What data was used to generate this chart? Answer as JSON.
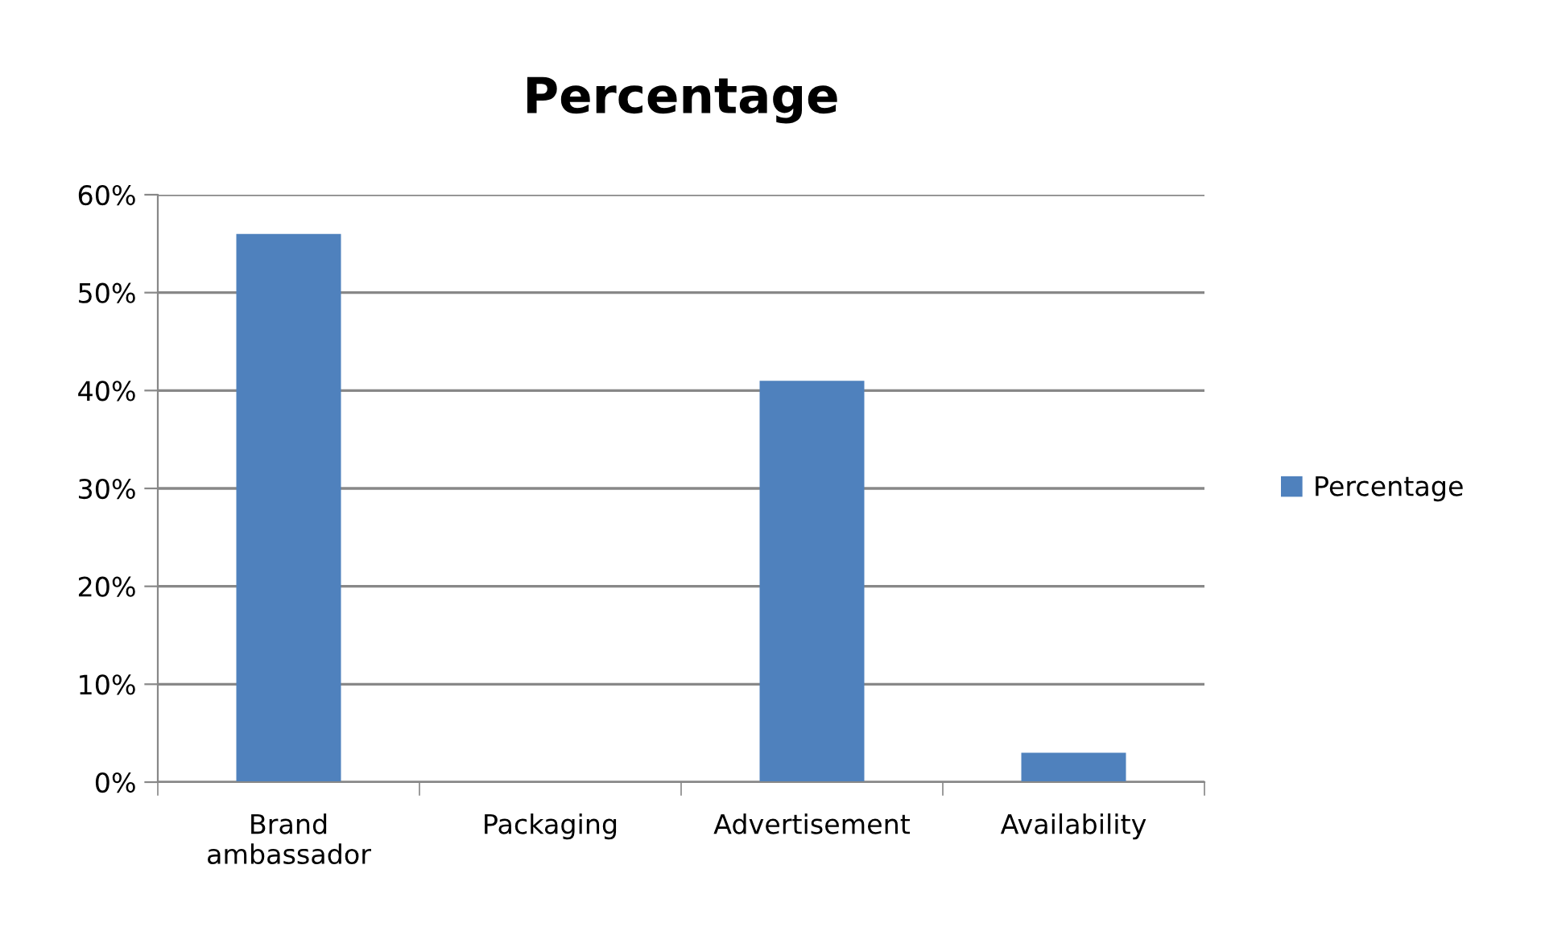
{
  "chart_data": {
    "type": "bar",
    "title": "Percentage",
    "categories": [
      "Brand\nambassador",
      "Packaging",
      "Advertisement",
      "Availability"
    ],
    "series": [
      {
        "name": "Percentage",
        "color": "#4f81bd",
        "values": [
          56,
          0,
          41,
          3
        ]
      }
    ],
    "ylim": [
      0,
      60
    ],
    "yticks": [
      {
        "value": 0,
        "label": "0%"
      },
      {
        "value": 10,
        "label": "10%"
      },
      {
        "value": 20,
        "label": "20%"
      },
      {
        "value": 30,
        "label": "30%"
      },
      {
        "value": 40,
        "label": "40%"
      },
      {
        "value": 50,
        "label": "50%"
      },
      {
        "value": 60,
        "label": "60%"
      }
    ],
    "grid": "y",
    "legend": "right"
  }
}
